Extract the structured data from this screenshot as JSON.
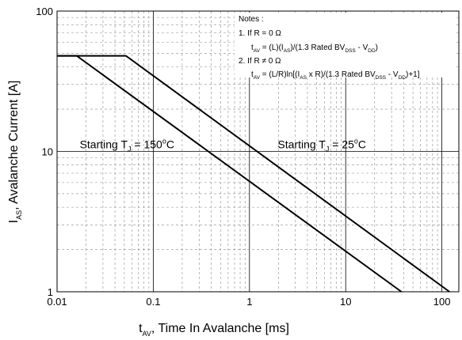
{
  "chart_data": {
    "type": "line",
    "x_scale": "log",
    "y_scale": "log",
    "xlim": [
      0.01,
      150
    ],
    "ylim": [
      1,
      100
    ],
    "grid": true,
    "x_ticks": [
      "0.01",
      "0.1",
      "1",
      "10",
      "100"
    ],
    "y_ticks": [
      "1",
      "10",
      "100"
    ],
    "xlabel": {
      "main": "t",
      "sub": "AV",
      "rest": ", Time In Avalanche [ms]"
    },
    "ylabel": {
      "main": "I",
      "sub": "AS",
      "rest": ", Avalanche Current [A]"
    },
    "series": [
      {
        "x": [
          0.01,
          0.016,
          38
        ],
        "y": [
          48,
          48,
          1
        ]
      },
      {
        "x": [
          0.01,
          0.052,
          120
        ],
        "y": [
          48,
          48,
          1
        ]
      }
    ],
    "annotations": [
      {
        "pre": "Starting T",
        "sub": "J",
        "mid": " = 150",
        "sup": "o",
        "post": "C",
        "x": 0.0105,
        "y": 10
      },
      {
        "pre": "Starting T",
        "sub": "J",
        "mid": " = 25",
        "sup": "o",
        "post": "C",
        "x": 1.2,
        "y": 10
      }
    ],
    "notes": {
      "title": "Notes :",
      "case1_label": "1. If R = 0 Ω",
      "case1_formula": {
        "a": "t",
        "a_sub": "AV",
        "b": " = (L)(I",
        "b_sub": "AS",
        "c": ")/(1.3 Rated BV",
        "c_sub": "DSS",
        "d": " - V",
        "d_sub": "DD",
        "e": ")"
      },
      "case2_label": "2. If R ≠ 0  Ω",
      "case2_formula": {
        "a": "t",
        "a_sub": "AV",
        "b": " = (L/R)ln[(I",
        "b_sub": "AS",
        "c": " x R)/(1.3 Rated BV",
        "c_sub": "DSS",
        "d": " - V",
        "d_sub": "DD",
        "e": ")+1]"
      }
    }
  }
}
